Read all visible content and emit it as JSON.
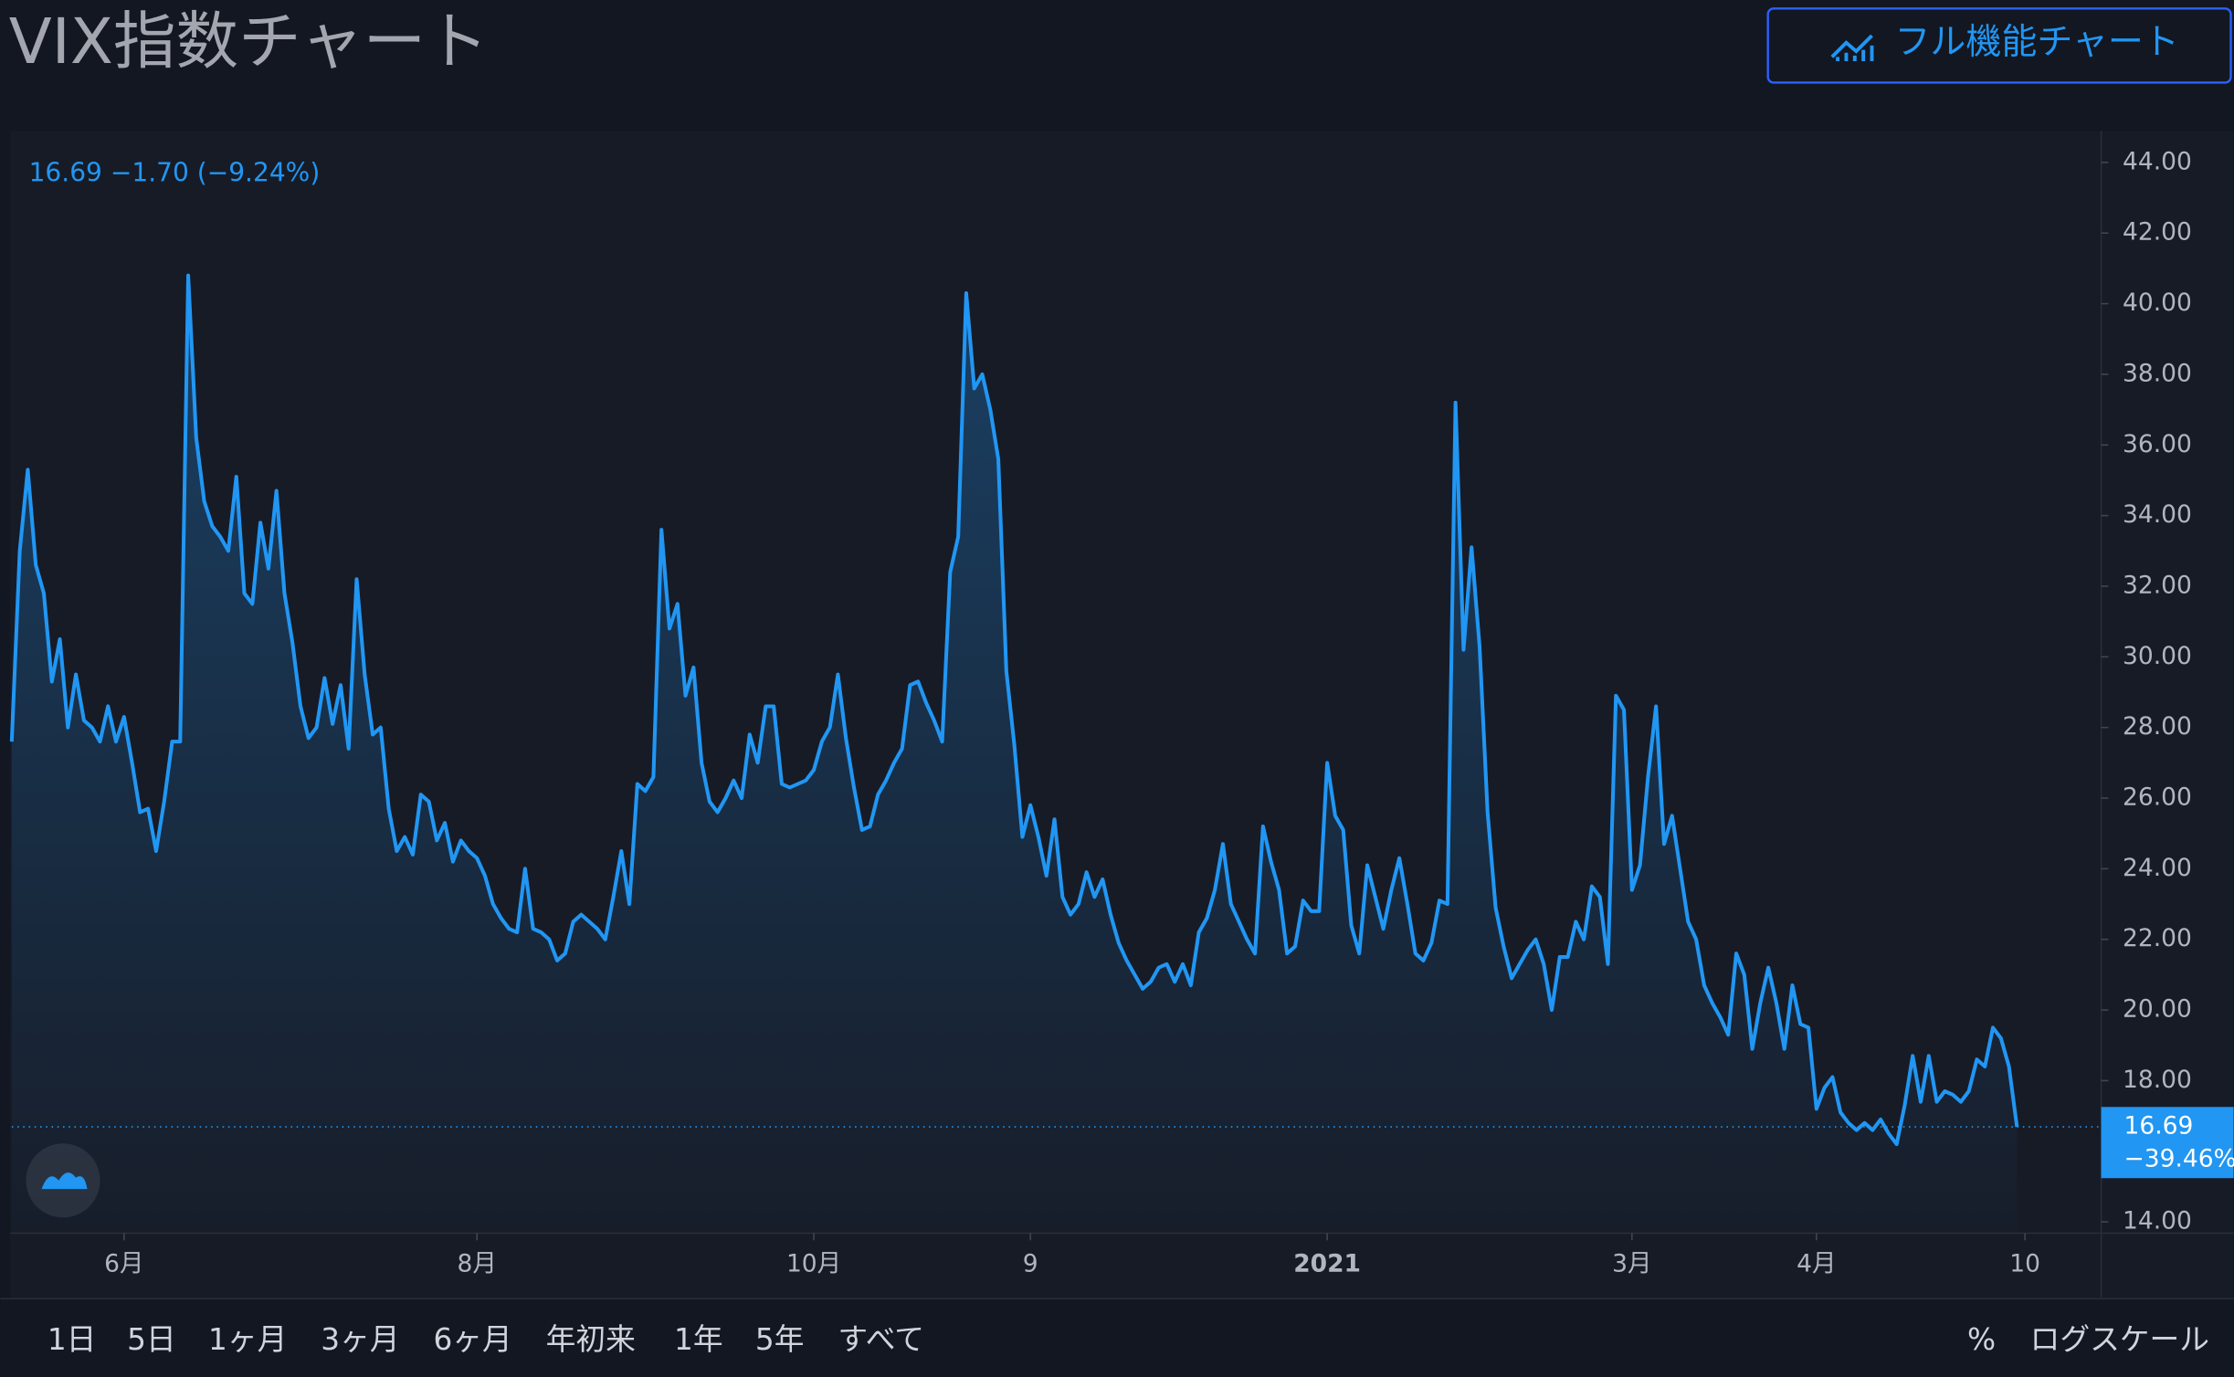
{
  "chart_data": {
    "type": "area-line",
    "title": "VIX指数チャート",
    "full_chart_button": "フル機能チャート",
    "legend_text": "16.69  −1.70 (−9.24%)",
    "color": "#2196f3",
    "values": [
      27.6,
      33.0,
      35.3,
      32.6,
      31.8,
      29.3,
      30.5,
      28.0,
      29.5,
      28.2,
      28.0,
      27.6,
      28.6,
      27.6,
      28.3,
      27.0,
      25.6,
      25.7,
      24.5,
      25.9,
      27.6,
      27.6,
      40.8,
      36.2,
      34.4,
      33.7,
      33.4,
      33.0,
      35.1,
      31.8,
      31.5,
      33.8,
      32.5,
      34.7,
      31.8,
      30.4,
      28.6,
      27.7,
      28.0,
      29.4,
      28.1,
      29.2,
      27.4,
      32.2,
      29.5,
      27.8,
      28.0,
      25.7,
      24.5,
      24.9,
      24.4,
      26.1,
      25.9,
      24.8,
      25.3,
      24.2,
      24.8,
      24.5,
      24.3,
      23.8,
      23.0,
      22.6,
      22.3,
      22.2,
      24.0,
      22.3,
      22.2,
      22.0,
      21.4,
      21.6,
      22.5,
      22.7,
      22.5,
      22.3,
      22.0,
      23.2,
      24.5,
      23.0,
      26.4,
      26.2,
      26.6,
      33.6,
      30.8,
      31.5,
      28.9,
      29.7,
      27.0,
      25.9,
      25.6,
      26.0,
      26.5,
      26.0,
      27.8,
      27.0,
      28.6,
      28.6,
      26.4,
      26.3,
      26.4,
      26.5,
      26.8,
      27.6,
      28.0,
      29.5,
      27.7,
      26.3,
      25.1,
      25.2,
      26.1,
      26.5,
      27.0,
      27.4,
      29.2,
      29.3,
      28.7,
      28.2,
      27.6,
      32.4,
      33.4,
      40.3,
      37.6,
      38.0,
      37.0,
      35.6,
      29.6,
      27.5,
      24.9,
      25.8,
      24.9,
      23.8,
      25.4,
      23.2,
      22.7,
      23.0,
      23.9,
      23.2,
      23.7,
      22.7,
      21.9,
      21.4,
      21.0,
      20.6,
      20.8,
      21.2,
      21.3,
      20.8,
      21.3,
      20.7,
      22.2,
      22.6,
      23.4,
      24.7,
      23.0,
      22.5,
      22.0,
      21.6,
      25.2,
      24.2,
      23.4,
      21.6,
      21.8,
      23.1,
      22.8,
      22.8,
      27.0,
      25.5,
      25.1,
      22.4,
      21.6,
      24.1,
      23.2,
      22.3,
      23.4,
      24.3,
      23.0,
      21.6,
      21.4,
      21.9,
      23.1,
      23.0,
      37.2,
      30.2,
      33.1,
      30.3,
      25.6,
      22.9,
      21.8,
      20.9,
      21.3,
      21.7,
      22.0,
      21.3,
      20.0,
      21.5,
      21.5,
      22.5,
      22.0,
      23.5,
      23.2,
      21.3,
      28.9,
      28.5,
      23.4,
      24.1,
      26.6,
      28.6,
      24.7,
      25.5,
      24.0,
      22.5,
      22.0,
      20.7,
      20.2,
      19.8,
      19.3,
      21.6,
      21.0,
      18.9,
      20.2,
      21.2,
      20.2,
      18.9,
      20.7,
      19.6,
      19.5,
      17.2,
      17.8,
      18.1,
      17.1,
      16.8,
      16.6,
      16.8,
      16.6,
      16.9,
      16.5,
      16.2,
      17.3,
      18.7,
      17.4,
      18.7,
      17.4,
      17.7,
      17.6,
      17.4,
      17.7,
      18.6,
      18.4,
      19.5,
      19.2,
      18.4,
      16.69
    ],
    "xlim": [
      0,
      260.5
    ],
    "xticks": [
      {
        "value": 14,
        "label": "6月"
      },
      {
        "value": 58,
        "label": "8月"
      },
      {
        "value": 100,
        "label": "10月"
      },
      {
        "value": 127,
        "label": "9"
      },
      {
        "value": 164,
        "label": "2021"
      },
      {
        "value": 202,
        "label": "3月"
      },
      {
        "value": 225,
        "label": "4月"
      },
      {
        "value": 251,
        "label": "10"
      }
    ],
    "ylim": [
      13.68,
      44.89
    ],
    "yticks": [
      {
        "value": 14,
        "label": "14.00"
      },
      {
        "value": 18,
        "label": "18.00"
      },
      {
        "value": 20,
        "label": "20.00"
      },
      {
        "value": 22,
        "label": "22.00"
      },
      {
        "value": 24,
        "label": "24.00"
      },
      {
        "value": 26,
        "label": "26.00"
      },
      {
        "value": 28,
        "label": "28.00"
      },
      {
        "value": 30,
        "label": "30.00"
      },
      {
        "value": 32,
        "label": "32.00"
      },
      {
        "value": 34,
        "label": "34.00"
      },
      {
        "value": 36,
        "label": "36.00"
      },
      {
        "value": 38,
        "label": "38.00"
      },
      {
        "value": 40,
        "label": "40.00"
      },
      {
        "value": 42,
        "label": "42.00"
      },
      {
        "value": 44,
        "label": "44.00"
      }
    ],
    "last_price": {
      "value": 16.69,
      "label": "16.69"
    },
    "last_change_label": "−39.46%",
    "range_buttons": [
      "1日",
      "5日",
      "1ヶ月",
      "3ヶ月",
      "6ヶ月",
      "年初来",
      "1年",
      "5年",
      "すべて"
    ],
    "percent_button": "%",
    "log_button": "ログスケール"
  }
}
